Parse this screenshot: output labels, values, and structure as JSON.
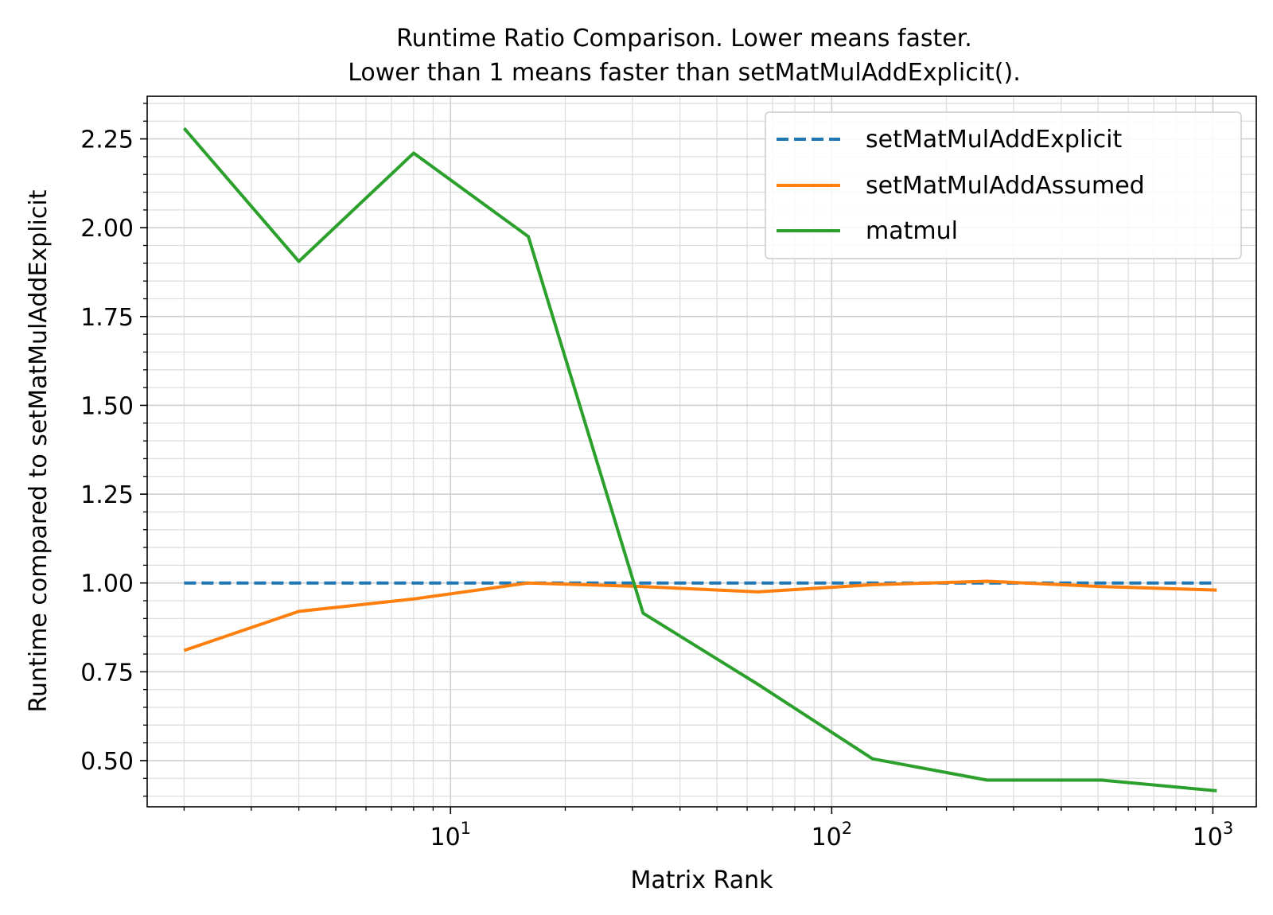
{
  "chart_data": {
    "type": "line",
    "title_line1": "Runtime Ratio Comparison. Lower means faster.",
    "title_line2": "Lower than 1 means faster than setMatMulAddExplicit().",
    "xlabel": "Matrix Rank",
    "ylabel": "Runtime compared to setMatMulAddExplicit",
    "xscale": "log",
    "xlim": [
      1.6,
      1300
    ],
    "ylim": [
      0.37,
      2.37
    ],
    "grid": true,
    "legend_position": "upper right",
    "x": [
      2,
      4,
      8,
      16,
      32,
      64,
      128,
      256,
      512,
      1024
    ],
    "series": [
      {
        "name": "setMatMulAddExplicit",
        "style": "dashed",
        "color": "#1f77b4",
        "values": [
          1.0,
          1.0,
          1.0,
          1.0,
          1.0,
          1.0,
          1.0,
          1.0,
          1.0,
          1.0
        ]
      },
      {
        "name": "setMatMulAddAssumed",
        "style": "solid",
        "color": "#ff7f0e",
        "values": [
          0.81,
          0.92,
          0.955,
          1.0,
          0.99,
          0.975,
          0.995,
          1.005,
          0.99,
          0.98
        ]
      },
      {
        "name": "matmul",
        "style": "solid",
        "color": "#2ca02c",
        "values": [
          2.28,
          1.905,
          2.21,
          1.975,
          0.915,
          0.715,
          0.505,
          0.445,
          0.445,
          0.415
        ]
      }
    ],
    "y_ticks": [
      {
        "value": 0.5,
        "label": "0.50"
      },
      {
        "value": 0.75,
        "label": "0.75"
      },
      {
        "value": 1.0,
        "label": "1.00"
      },
      {
        "value": 1.25,
        "label": "1.25"
      },
      {
        "value": 1.5,
        "label": "1.50"
      },
      {
        "value": 1.75,
        "label": "1.75"
      },
      {
        "value": 2.0,
        "label": "2.00"
      },
      {
        "value": 2.25,
        "label": "2.25"
      }
    ],
    "x_ticks": [
      {
        "value": 10,
        "base": "10",
        "exp": "1"
      },
      {
        "value": 100,
        "base": "10",
        "exp": "2"
      },
      {
        "value": 1000,
        "base": "10",
        "exp": "3"
      }
    ]
  }
}
